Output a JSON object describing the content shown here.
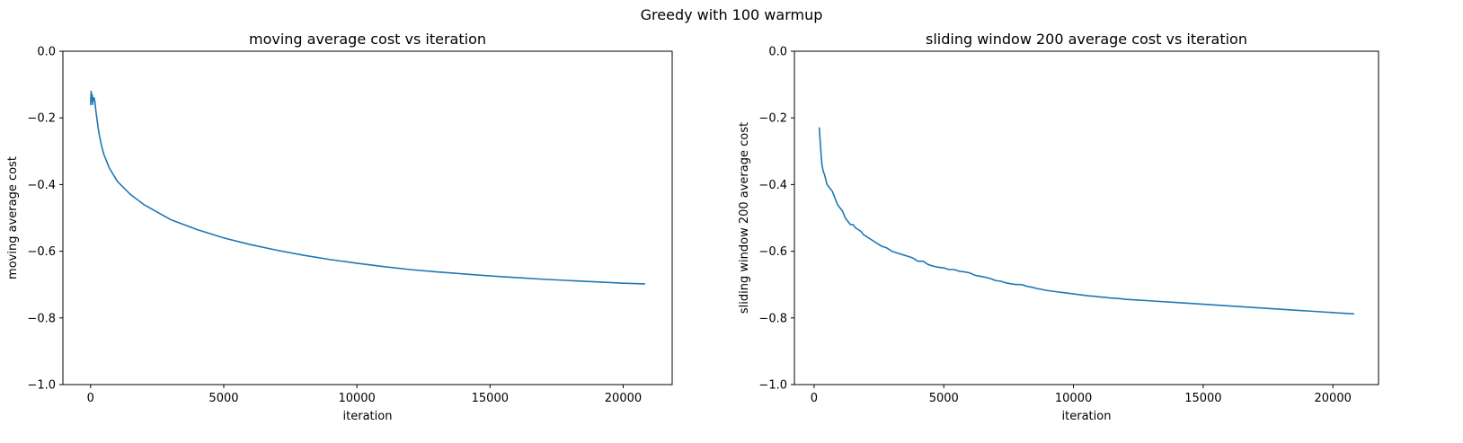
{
  "figure": {
    "suptitle": "Greedy with 100 warmup"
  },
  "chart_data": [
    {
      "type": "line",
      "title": "moving average cost vs iteration",
      "xlabel": "iteration",
      "ylabel": "moving average cost",
      "xlim": [
        -1040,
        21840
      ],
      "ylim": [
        -1.0,
        0.0
      ],
      "xticks": [
        0,
        5000,
        10000,
        15000,
        20000
      ],
      "yticks": [
        -1.0,
        -0.8,
        -0.6,
        -0.4,
        -0.2,
        0.0
      ],
      "ytick_labels": [
        "−1.0",
        "−0.8",
        "−0.6",
        "−0.4",
        "−0.2",
        "0.0"
      ],
      "grid": false,
      "color": "#1f77b4",
      "series": [
        {
          "x": [
            0,
            20,
            40,
            60,
            80,
            100,
            130,
            160,
            200,
            250,
            300,
            400,
            500,
            700,
            1000,
            1500,
            2000,
            3000,
            4000,
            5000,
            6000,
            7000,
            8000,
            9000,
            10000,
            11000,
            12000,
            13000,
            14000,
            15000,
            16000,
            17000,
            18000,
            19000,
            20000,
            20800
          ],
          "y": [
            -0.16,
            -0.12,
            -0.15,
            -0.13,
            -0.16,
            -0.14,
            -0.14,
            -0.15,
            -0.18,
            -0.21,
            -0.24,
            -0.28,
            -0.31,
            -0.35,
            -0.39,
            -0.43,
            -0.46,
            -0.505,
            -0.535,
            -0.56,
            -0.58,
            -0.597,
            -0.612,
            -0.625,
            -0.636,
            -0.646,
            -0.655,
            -0.662,
            -0.668,
            -0.674,
            -0.679,
            -0.684,
            -0.688,
            -0.692,
            -0.696,
            -0.698
          ]
        }
      ]
    },
    {
      "type": "line",
      "title": "sliding window 200 average cost vs iteration",
      "xlabel": "iteration",
      "ylabel": "sliding window 200 average cost",
      "xlim": [
        -760,
        21760
      ],
      "ylim": [
        -1.0,
        0.0
      ],
      "xticks": [
        0,
        5000,
        10000,
        15000,
        20000
      ],
      "yticks": [
        -1.0,
        -0.8,
        -0.6,
        -0.4,
        -0.2,
        0.0
      ],
      "ytick_labels": [
        "−1.0",
        "−0.8",
        "−0.6",
        "−0.4",
        "−0.2",
        "0.0"
      ],
      "grid": false,
      "color": "#1f77b4",
      "series": [
        {
          "x": [
            200,
            250,
            300,
            350,
            400,
            500,
            600,
            700,
            800,
            900,
            1000,
            1100,
            1200,
            1300,
            1400,
            1500,
            1600,
            1700,
            1800,
            1900,
            2000,
            2200,
            2400,
            2600,
            2800,
            3000,
            3200,
            3400,
            3600,
            3800,
            4000,
            4200,
            4400,
            4600,
            4800,
            5000,
            5200,
            5400,
            5600,
            5800,
            6000,
            6200,
            6400,
            6600,
            6800,
            7000,
            7200,
            7400,
            7600,
            7800,
            8000,
            8200,
            8400,
            8600,
            8800,
            9000,
            9200,
            9400,
            9600,
            9800,
            10000,
            10200,
            10400,
            10600,
            10800,
            11000,
            11200,
            11400,
            11600,
            11800,
            12000,
            12200,
            12400,
            12600,
            12800,
            13000,
            13200,
            13400,
            13600,
            13800,
            14000,
            14200,
            14400,
            14600,
            14800,
            15000,
            15200,
            15400,
            15600,
            15800,
            16000,
            16200,
            16400,
            16600,
            16800,
            17000,
            17200,
            17400,
            17600,
            17800,
            18000,
            18200,
            18400,
            18600,
            18800,
            19000,
            19200,
            19400,
            19600,
            19800,
            20000,
            20200,
            20400,
            20600,
            20800
          ],
          "y": [
            -0.23,
            -0.29,
            -0.34,
            -0.36,
            -0.37,
            -0.4,
            -0.41,
            -0.42,
            -0.44,
            -0.46,
            -0.47,
            -0.48,
            -0.5,
            -0.51,
            -0.52,
            -0.52,
            -0.53,
            -0.535,
            -0.54,
            -0.55,
            -0.555,
            -0.565,
            -0.575,
            -0.585,
            -0.59,
            -0.6,
            -0.605,
            -0.61,
            -0.615,
            -0.62,
            -0.63,
            -0.63,
            -0.64,
            -0.645,
            -0.648,
            -0.65,
            -0.655,
            -0.655,
            -0.66,
            -0.662,
            -0.665,
            -0.672,
            -0.675,
            -0.678,
            -0.682,
            -0.688,
            -0.69,
            -0.695,
            -0.698,
            -0.7,
            -0.7,
            -0.705,
            -0.708,
            -0.712,
            -0.715,
            -0.718,
            -0.72,
            -0.722,
            -0.724,
            -0.726,
            -0.728,
            -0.73,
            -0.732,
            -0.734,
            -0.735,
            -0.737,
            -0.738,
            -0.74,
            -0.741,
            -0.742,
            -0.744,
            -0.745,
            -0.746,
            -0.747,
            -0.748,
            -0.749,
            -0.75,
            -0.751,
            -0.752,
            -0.753,
            -0.754,
            -0.755,
            -0.756,
            -0.757,
            -0.758,
            -0.759,
            -0.76,
            -0.761,
            -0.762,
            -0.763,
            -0.764,
            -0.765,
            -0.766,
            -0.767,
            -0.768,
            -0.769,
            -0.77,
            -0.771,
            -0.772,
            -0.773,
            -0.774,
            -0.775,
            -0.776,
            -0.777,
            -0.778,
            -0.779,
            -0.78,
            -0.781,
            -0.782,
            -0.783,
            -0.784,
            -0.785,
            -0.786,
            -0.787,
            -0.788
          ]
        }
      ]
    }
  ]
}
